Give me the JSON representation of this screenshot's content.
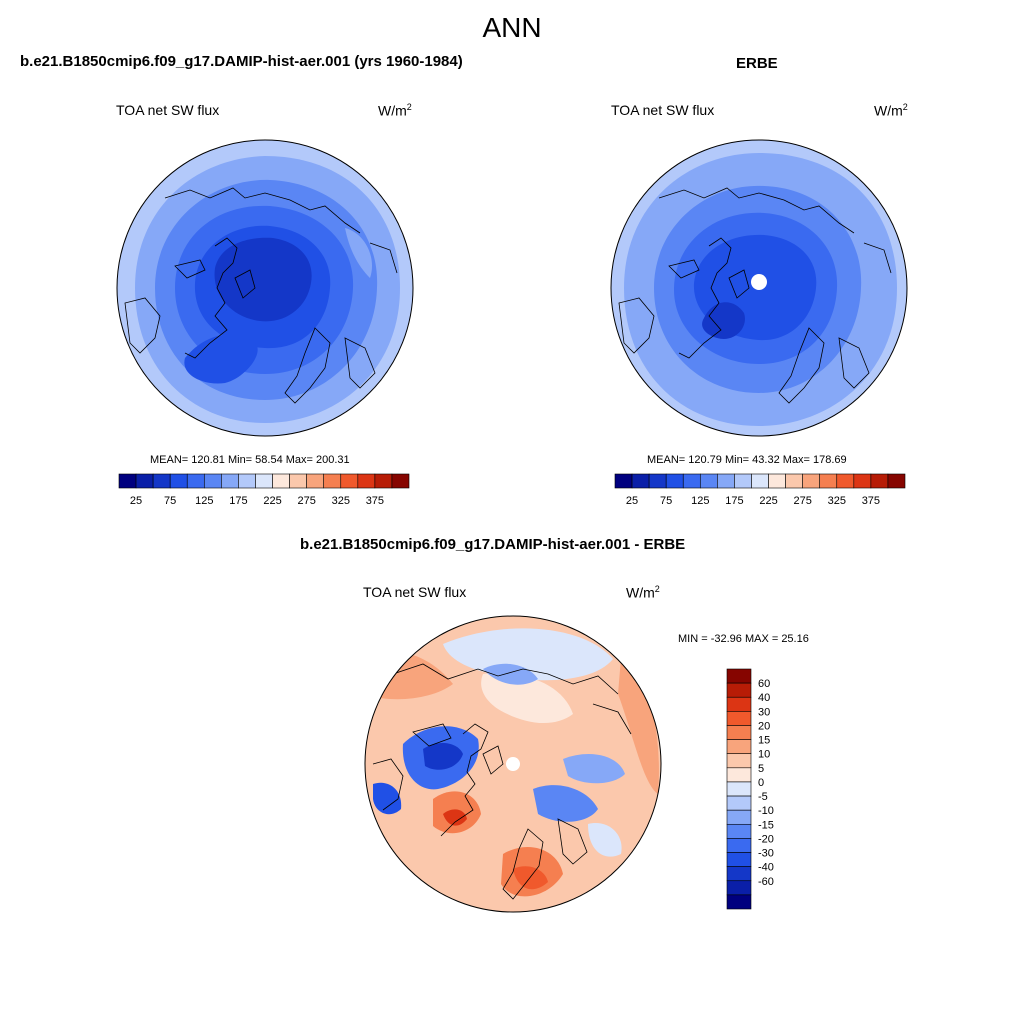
{
  "figure": {
    "title": "ANN"
  },
  "panels": {
    "model": {
      "title": "b.e21.B1850cmip6.f09_g17.DAMIP-hist-aer.001 (yrs 1960-1984)",
      "variable": "TOA net SW flux",
      "units": "W/m",
      "units_exp": "2",
      "stats": "MEAN= 120.81  Min=  58.54  Max= 200.31"
    },
    "obs": {
      "title": "ERBE",
      "variable": "TOA net SW flux",
      "units": "W/m",
      "units_exp": "2",
      "stats": "MEAN= 120.79  Min=  43.32  Max= 178.69"
    },
    "diff": {
      "title": "b.e21.B1850cmip6.f09_g17.DAMIP-hist-aer.001 - ERBE",
      "variable": "TOA net SW flux",
      "units": "W/m",
      "units_exp": "2",
      "stats": "MIN = -32.96 MAX =  25.16"
    }
  },
  "colorbar_field": {
    "colors": [
      "#00007f",
      "#0a1fa8",
      "#1437c8",
      "#2050e6",
      "#3a6af0",
      "#5a86f4",
      "#86a8f7",
      "#b3c9fa",
      "#dbe6fb",
      "#fde8dc",
      "#fbc8ac",
      "#f8a47c",
      "#f57f50",
      "#f0592c",
      "#dc3514",
      "#b71c06",
      "#860500"
    ],
    "tick_labels": [
      "25",
      "75",
      "125",
      "175",
      "225",
      "275",
      "325",
      "375"
    ]
  },
  "colorbar_diff": {
    "colors": [
      "#860500",
      "#b71c06",
      "#dc3514",
      "#f0592c",
      "#f57f50",
      "#f8a47c",
      "#fbc8ac",
      "#fde8dc",
      "#dbe6fb",
      "#b3c9fa",
      "#86a8f7",
      "#5a86f4",
      "#3a6af0",
      "#2050e6",
      "#1437c8",
      "#0a1fa8",
      "#00007f"
    ],
    "tick_labels": [
      "60",
      "40",
      "30",
      "20",
      "15",
      "10",
      "5",
      "0",
      "-5",
      "-10",
      "-15",
      "-20",
      "-30",
      "-40",
      "-60"
    ]
  }
}
